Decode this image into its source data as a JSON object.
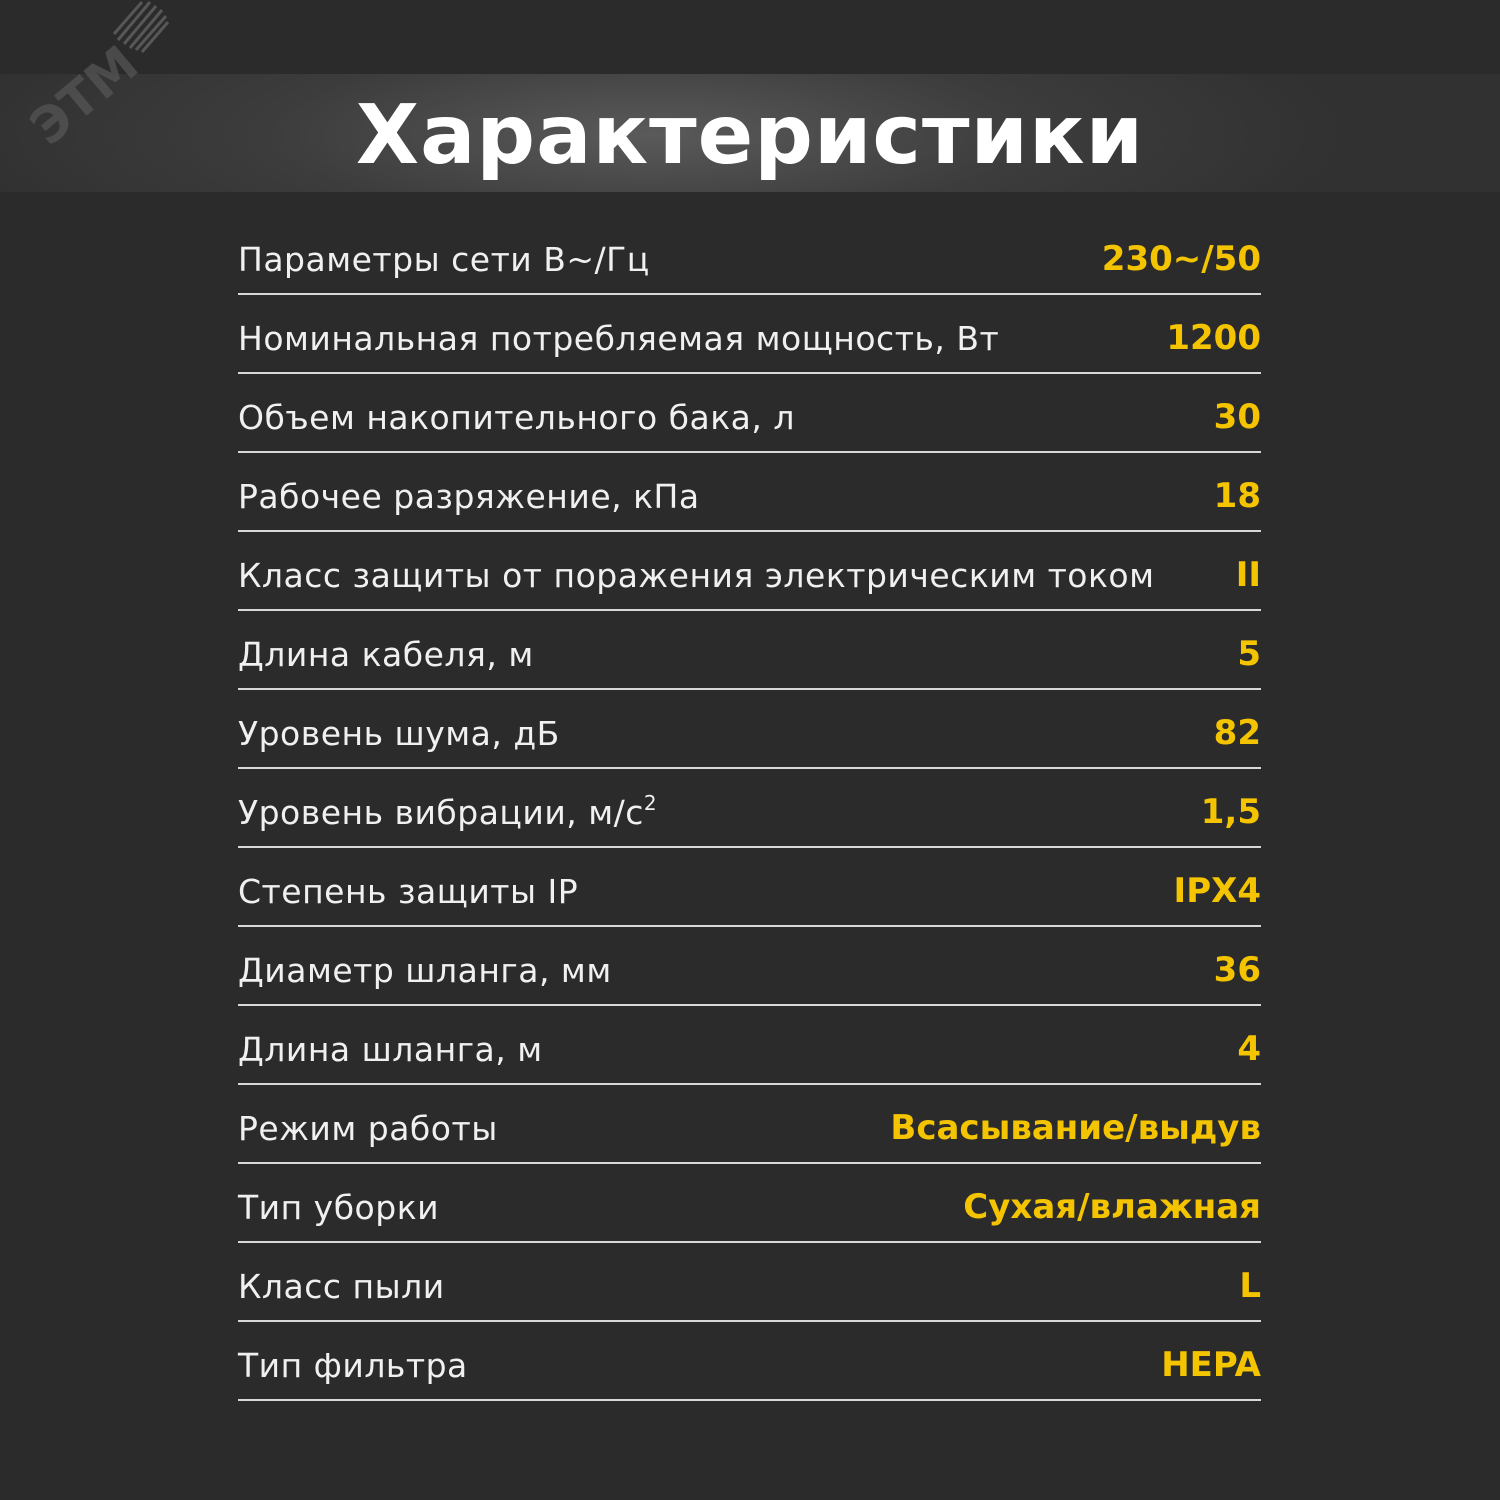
{
  "brand": {
    "logo_text": "ЭТМ"
  },
  "title": "Характеристики",
  "colors": {
    "background": "#2b2b2b",
    "value": "#f5c400",
    "label": "#f0f0f0"
  },
  "specs": [
    {
      "label": "Параметры сети В~/Гц",
      "value": "230~/50"
    },
    {
      "label": "Номинальная потребляемая мощность, Вт",
      "value": "1200"
    },
    {
      "label": "Объем накопительного бака, л",
      "value": "30"
    },
    {
      "label": "Рабочее разряжение, кПа",
      "value": "18"
    },
    {
      "label": "Класс защиты от поражения электрическим током",
      "value": "II"
    },
    {
      "label": "Длина кабеля, м",
      "value": "5"
    },
    {
      "label": "Уровень шума, дБ",
      "value": "82"
    },
    {
      "label": "Уровень вибрации, м/с",
      "sup": "2",
      "value": "1,5"
    },
    {
      "label": "Степень защиты IP",
      "value": "IPX4"
    },
    {
      "label": "Диаметр шланга, мм",
      "value": "36"
    },
    {
      "label": "Длина шланга, м",
      "value": "4"
    },
    {
      "label": "Режим работы",
      "value": "Всасывание/выдув"
    },
    {
      "label": "Тип уборки",
      "value": "Сухая/влажная"
    },
    {
      "label": "Класс пыли",
      "value": "L"
    },
    {
      "label": "Тип фильтра",
      "value": "HEPA"
    }
  ]
}
